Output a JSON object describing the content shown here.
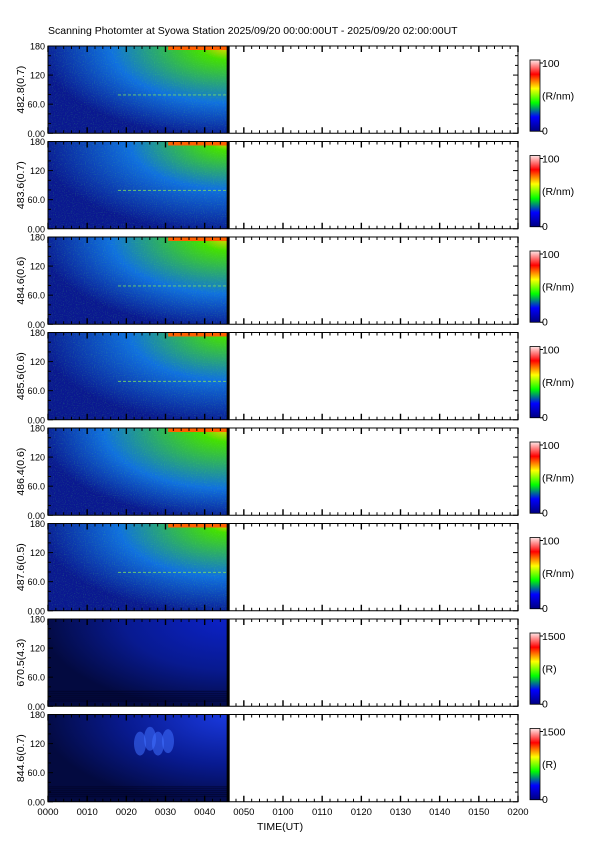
{
  "title": "Scanning Photomter at Syowa Station  2025/09/20 00:00:00UT - 2025/09/20 02:00:00UT",
  "chart_data": {
    "type": "heatmap",
    "title": "Scanning Photomter at Syowa Station  2025/09/20 00:00:00UT - 2025/09/20 02:00:00UT",
    "xlabel": "TIME(UT)",
    "x_ticks": [
      "0000",
      "0010",
      "0020",
      "0030",
      "0040",
      "0050",
      "0100",
      "0110",
      "0120",
      "0130",
      "0140",
      "0150",
      "0200"
    ],
    "xlim": [
      "0000",
      "0200"
    ],
    "data_end_time": "0046",
    "ylim": [
      0,
      180
    ],
    "y_ticks": [
      "0.00",
      "60.0",
      "120",
      "180"
    ],
    "colorscale": [
      "#000080",
      "#0000ff",
      "#00ff00",
      "#ffff00",
      "#ff0000",
      "#ffe8e8"
    ],
    "panels": [
      {
        "ylabel": "482.8(0.7)",
        "unit": "(R/nm)",
        "cmin": "0",
        "cmax": "100",
        "band_glow": [
          0.15,
          0.62
        ],
        "streak_y": [
          79
        ],
        "aurora": false
      },
      {
        "ylabel": "483.6(0.7)",
        "unit": "(R/nm)",
        "cmin": "0",
        "cmax": "100",
        "band_glow": [
          0.1,
          0.52
        ],
        "streak_y": [
          79
        ],
        "aurora": false
      },
      {
        "ylabel": "484.6(0.6)",
        "unit": "(R/nm)",
        "cmin": "0",
        "cmax": "100",
        "band_glow": [
          0.15,
          0.62
        ],
        "streak_y": [
          79
        ],
        "aurora": false
      },
      {
        "ylabel": "485.6(0.6)",
        "unit": "(R/nm)",
        "cmin": "0",
        "cmax": "100",
        "band_glow": [
          0.05,
          0.52
        ],
        "streak_y": [
          79
        ],
        "aurora": false
      },
      {
        "ylabel": "486.4(0.6)",
        "unit": "(R/nm)",
        "cmin": "0",
        "cmax": "100",
        "band_glow": [
          0.15,
          0.66
        ],
        "streak_y": [],
        "aurora": false
      },
      {
        "ylabel": "487.6(0.5)",
        "unit": "(R/nm)",
        "cmin": "0",
        "cmax": "100",
        "band_glow": [
          0.1,
          0.58
        ],
        "streak_y": [
          79
        ],
        "aurora": false
      },
      {
        "ylabel": "670.5(4.3)",
        "unit": "(R)",
        "cmin": "0",
        "cmax": "1500",
        "band_glow": [
          0.0,
          0.0
        ],
        "streak_y": [],
        "aurora": false
      },
      {
        "ylabel": "844.6(0.7)",
        "unit": "(R)",
        "cmin": "0",
        "cmax": "1500",
        "band_glow": [
          0.0,
          0.0
        ],
        "streak_y": [],
        "aurora": true
      }
    ]
  }
}
